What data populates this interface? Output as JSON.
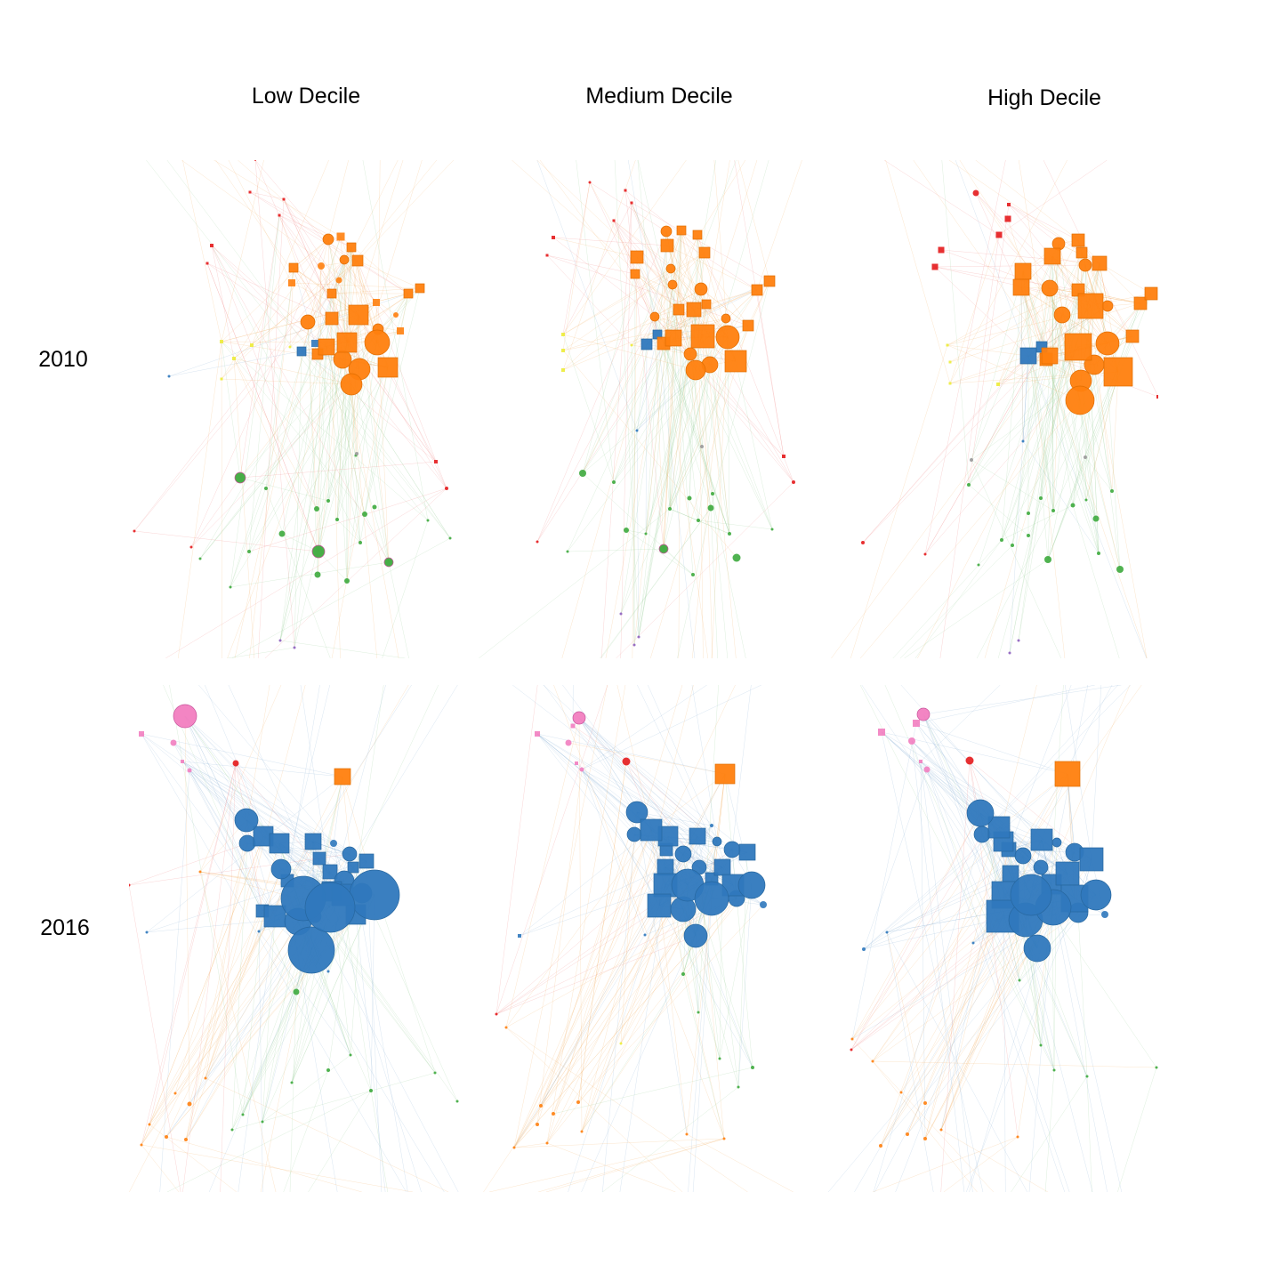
{
  "columns": [
    "Low Decile",
    "Medium Decile",
    "High Decile"
  ],
  "rows": [
    "2010",
    "2016"
  ],
  "colors": {
    "orange": "#ff7f0e",
    "blue": "#2f78bd",
    "green": "#3daa3d",
    "red": "#e41a1c",
    "yellow": "#ecec3a",
    "pink": "#f27ec0",
    "gray": "#999999",
    "purple": "#8e5fbf",
    "edge_orange": "#f3b46e",
    "edge_green": "#9fd09f",
    "edge_blue": "#8fb4d8",
    "edge_red": "#f08a8a"
  },
  "legend_semantics": {
    "node_shapes": [
      "circle",
      "square"
    ],
    "node_size": "relative"
  }
}
